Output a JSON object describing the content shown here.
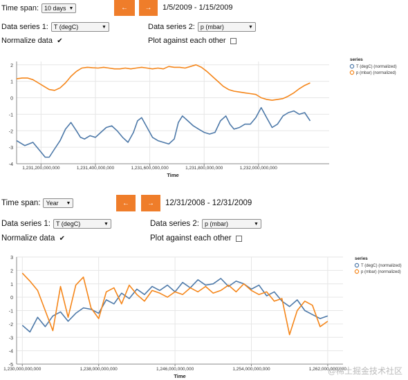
{
  "panel1": {
    "controls": {
      "timespan_label": "Time span:",
      "timespan_value": "10 days",
      "prev_label": "←",
      "next_label": "→",
      "date_range": "1/5/2009 - 1/15/2009",
      "series1_label": "Data series 1:",
      "series1_value": "T (degC)",
      "series2_label": "Data series 2:",
      "series2_value": "p (mbar)",
      "normalize_label": "Normalize data",
      "normalize_mark": "✔",
      "against_label": "Plot against each other"
    }
  },
  "panel2": {
    "controls": {
      "timespan_label": "Time span:",
      "timespan_value": "Year",
      "prev_label": "←",
      "next_label": "→",
      "date_range": "12/31/2008 - 12/31/2009",
      "series1_label": "Data series 1:",
      "series1_value": "T (degC)",
      "series2_label": "Data series 2:",
      "series2_value": "p (mbar)",
      "normalize_label": "Normalize data",
      "normalize_mark": "✔",
      "against_label": "Plot against each other"
    }
  },
  "watermark": "@稀土掘金技术社区",
  "colors": {
    "t_series": "#4c78a8",
    "p_series": "#f58518",
    "nav_button": "#ef7d2a"
  },
  "chart_data": [
    {
      "type": "line",
      "xlabel": "Time",
      "ylabel": "",
      "xlim": [
        1231110000000,
        1232260000000
      ],
      "ylim": [
        -4,
        2.2
      ],
      "x_ticks": [
        1231200000000,
        1231400000000,
        1231600000000,
        1231800000000,
        1232000000000
      ],
      "x_tick_labels": [
        "1,231,200,000,000",
        "1,231,400,000,000",
        "1,231,600,000,000",
        "1,231,800,000,000",
        "1,232,000,000,000"
      ],
      "y_ticks": [
        -4,
        -3,
        -2,
        -1,
        0,
        1,
        2
      ],
      "y_tick_labels": [
        "-4",
        "-3",
        "-2",
        "-1",
        "0",
        "1",
        "2"
      ],
      "grid": true,
      "legend": {
        "title": "series",
        "position": "top-right"
      },
      "series": [
        {
          "name": "T (degC) (normalized)",
          "x": [
            1231110000000,
            1231140000000,
            1231170000000,
            1231200000000,
            1231215000000,
            1231230000000,
            1231250000000,
            1231270000000,
            1231290000000,
            1231310000000,
            1231330000000,
            1231345000000,
            1231360000000,
            1231380000000,
            1231400000000,
            1231420000000,
            1231440000000,
            1231460000000,
            1231480000000,
            1231500000000,
            1231520000000,
            1231540000000,
            1231555000000,
            1231570000000,
            1231590000000,
            1231610000000,
            1231630000000,
            1231650000000,
            1231670000000,
            1231690000000,
            1231705000000,
            1231720000000,
            1231740000000,
            1231760000000,
            1231780000000,
            1231800000000,
            1231820000000,
            1231840000000,
            1231860000000,
            1231880000000,
            1231895000000,
            1231910000000,
            1231930000000,
            1231950000000,
            1231970000000,
            1231990000000,
            1232010000000,
            1232030000000,
            1232050000000,
            1232070000000,
            1232090000000,
            1232110000000,
            1232130000000,
            1232150000000,
            1232170000000,
            1232190000000
          ],
          "y": [
            -2.6,
            -2.9,
            -2.7,
            -3.3,
            -3.6,
            -3.6,
            -3.1,
            -2.6,
            -1.9,
            -1.5,
            -2.0,
            -2.4,
            -2.5,
            -2.3,
            -2.4,
            -2.1,
            -1.8,
            -1.7,
            -2.0,
            -2.4,
            -2.7,
            -2.1,
            -1.4,
            -1.2,
            -1.8,
            -2.4,
            -2.6,
            -2.7,
            -2.8,
            -2.5,
            -1.5,
            -1.1,
            -1.4,
            -1.7,
            -1.9,
            -2.1,
            -2.2,
            -2.1,
            -1.4,
            -1.1,
            -1.6,
            -1.9,
            -1.8,
            -1.6,
            -1.6,
            -1.2,
            -0.6,
            -1.2,
            -1.8,
            -1.6,
            -1.1,
            -0.9,
            -0.8,
            -1.0,
            -0.9,
            -1.4
          ]
        },
        {
          "name": "p (mbar) (normalized)",
          "x": [
            1231110000000,
            1231130000000,
            1231150000000,
            1231170000000,
            1231190000000,
            1231210000000,
            1231230000000,
            1231250000000,
            1231270000000,
            1231290000000,
            1231310000000,
            1231330000000,
            1231350000000,
            1231370000000,
            1231390000000,
            1231410000000,
            1231430000000,
            1231450000000,
            1231470000000,
            1231490000000,
            1231510000000,
            1231530000000,
            1231550000000,
            1231570000000,
            1231590000000,
            1231610000000,
            1231630000000,
            1231650000000,
            1231670000000,
            1231690000000,
            1231710000000,
            1231730000000,
            1231750000000,
            1231770000000,
            1231790000000,
            1231810000000,
            1231830000000,
            1231850000000,
            1231870000000,
            1231890000000,
            1231910000000,
            1231930000000,
            1231950000000,
            1231970000000,
            1231990000000,
            1232010000000,
            1232030000000,
            1232050000000,
            1232070000000,
            1232090000000,
            1232110000000,
            1232130000000,
            1232150000000,
            1232170000000,
            1232190000000
          ],
          "y": [
            1.15,
            1.2,
            1.2,
            1.1,
            0.9,
            0.7,
            0.5,
            0.45,
            0.6,
            0.9,
            1.3,
            1.6,
            1.8,
            1.85,
            1.82,
            1.8,
            1.85,
            1.8,
            1.75,
            1.75,
            1.8,
            1.75,
            1.8,
            1.85,
            1.8,
            1.75,
            1.8,
            1.75,
            1.9,
            1.85,
            1.85,
            1.8,
            1.9,
            2.0,
            1.85,
            1.6,
            1.3,
            1.0,
            0.7,
            0.5,
            0.4,
            0.35,
            0.3,
            0.25,
            0.2,
            0.0,
            -0.1,
            -0.15,
            -0.1,
            -0.05,
            0.1,
            0.3,
            0.55,
            0.75,
            0.9
          ]
        }
      ]
    },
    {
      "type": "line",
      "xlabel": "Time",
      "ylabel": "",
      "xlim": [
        1229400000000,
        1263600000000
      ],
      "ylim": [
        -5,
        3
      ],
      "x_ticks": [
        1230000000000,
        1238000000000,
        1246000000000,
        1254000000000,
        1262000000000
      ],
      "x_tick_labels": [
        "1,230,000,000,000",
        "1,238,000,000,000",
        "1,246,000,000,000",
        "1,254,000,000,000",
        "1,262,000,000,000"
      ],
      "y_ticks": [
        -5,
        -4,
        -3,
        -2,
        -1,
        0,
        1,
        2,
        3
      ],
      "y_tick_labels": [
        "-5",
        "-4",
        "-3",
        "-2",
        "-1",
        "0",
        "1",
        "2",
        "3"
      ],
      "grid": true,
      "legend": {
        "title": "series",
        "position": "top-right"
      },
      "series": [
        {
          "name": "T (degC) (normalized)",
          "x": [
            1230000000000,
            1230800000000,
            1231600000000,
            1232400000000,
            1233200000000,
            1234000000000,
            1234800000000,
            1235600000000,
            1236400000000,
            1237200000000,
            1238000000000,
            1238800000000,
            1239600000000,
            1240400000000,
            1241200000000,
            1242000000000,
            1242800000000,
            1243600000000,
            1244400000000,
            1245200000000,
            1246000000000,
            1246800000000,
            1247600000000,
            1248400000000,
            1249200000000,
            1250000000000,
            1250800000000,
            1251600000000,
            1252400000000,
            1253200000000,
            1254000000000,
            1254800000000,
            1255600000000,
            1256400000000,
            1257200000000,
            1258000000000,
            1258800000000,
            1259600000000,
            1260400000000,
            1261200000000,
            1262000000000
          ],
          "y": [
            -2.1,
            -2.6,
            -1.5,
            -2.2,
            -1.4,
            -1.1,
            -1.8,
            -1.2,
            -0.8,
            -0.9,
            -1.2,
            -0.2,
            -0.5,
            0.3,
            -0.1,
            0.6,
            0.2,
            0.8,
            0.5,
            0.9,
            0.4,
            1.1,
            0.7,
            1.3,
            0.9,
            1.0,
            1.4,
            0.8,
            1.2,
            1.0,
            0.6,
            0.9,
            0.1,
            0.4,
            -0.3,
            -0.7,
            -0.2,
            -1.0,
            -1.3,
            -1.6,
            -1.4
          ]
        },
        {
          "name": "p (mbar) (normalized)",
          "x": [
            1230000000000,
            1230800000000,
            1231600000000,
            1232400000000,
            1233200000000,
            1234000000000,
            1234800000000,
            1235600000000,
            1236400000000,
            1237200000000,
            1238000000000,
            1238800000000,
            1239600000000,
            1240400000000,
            1241200000000,
            1242000000000,
            1242800000000,
            1243600000000,
            1244400000000,
            1245200000000,
            1246000000000,
            1246800000000,
            1247600000000,
            1248400000000,
            1249200000000,
            1250000000000,
            1250800000000,
            1251600000000,
            1252400000000,
            1253200000000,
            1254000000000,
            1254800000000,
            1255600000000,
            1256400000000,
            1257200000000,
            1258000000000,
            1258800000000,
            1259600000000,
            1260400000000,
            1261200000000,
            1262000000000
          ],
          "y": [
            1.8,
            1.2,
            0.5,
            -1.0,
            -2.5,
            0.8,
            -1.5,
            0.9,
            1.5,
            -0.8,
            -1.6,
            0.4,
            0.7,
            -0.5,
            0.9,
            0.2,
            -0.3,
            0.5,
            0.3,
            0.0,
            0.4,
            0.2,
            0.7,
            0.4,
            0.8,
            0.3,
            0.5,
            0.9,
            0.4,
            1.0,
            0.5,
            0.2,
            0.4,
            -0.3,
            -0.1,
            -2.8,
            -1.0,
            -0.3,
            -0.6,
            -2.2,
            -1.8
          ]
        }
      ]
    }
  ]
}
